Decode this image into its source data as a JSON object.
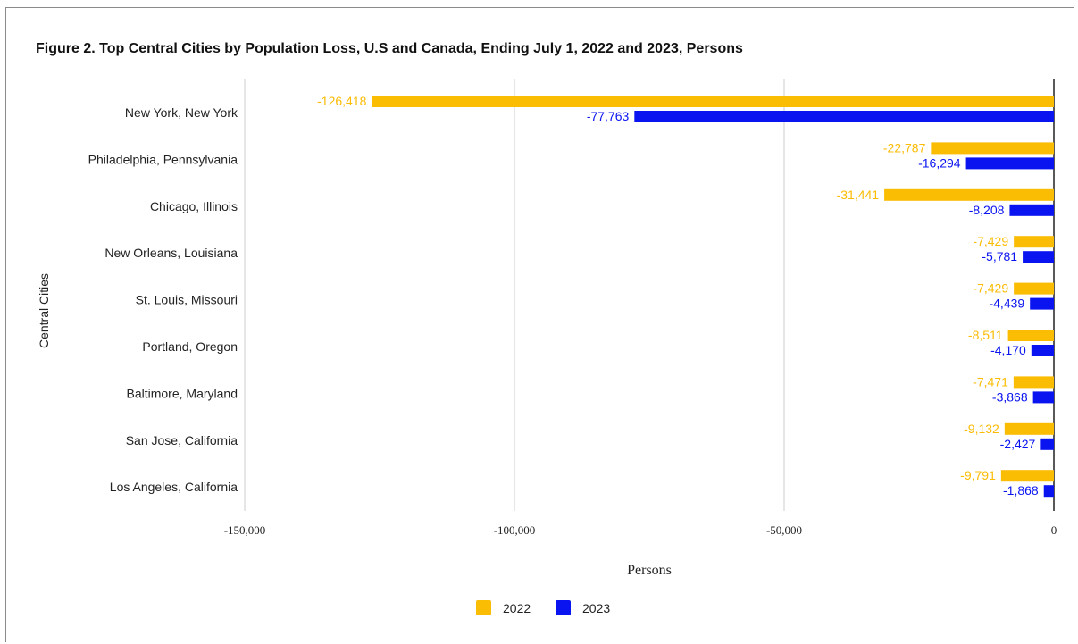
{
  "colors": {
    "series_2022": "#FBBC04",
    "series_2023": "#0A14F0",
    "grid": "#cccccc",
    "axis": "#222222"
  },
  "chart_data": {
    "type": "bar",
    "orientation": "horizontal",
    "title": "Figure 2. Top Central Cities by Population Loss, U.S and Canada, Ending July 1, 2022 and 2023, Persons",
    "xlabel": "Persons",
    "ylabel": "Central Cities",
    "xlim": [
      -150000,
      0
    ],
    "xticks": [
      -150000,
      -100000,
      -50000,
      0
    ],
    "xtick_labels": [
      "-150,000",
      "-100,000",
      "-50,000",
      "0"
    ],
    "grid": "vertical",
    "legend_position": "bottom",
    "categories": [
      "New York, New York",
      "Philadelphia, Pennsylvania",
      "Chicago, Illinois",
      "New Orleans, Louisiana",
      "St. Louis, Missouri",
      "Portland, Oregon",
      "Baltimore, Maryland",
      "San Jose, California",
      "Los Angeles, California"
    ],
    "series": [
      {
        "name": "2022",
        "values": [
          -126418,
          -22787,
          -31441,
          -7429,
          -7429,
          -8511,
          -7471,
          -9132,
          -9791
        ],
        "labels": [
          "-126,418",
          "-22,787",
          "-31,441",
          "-7,429",
          "-7,429",
          "-8,511",
          "-7,471",
          "-9,132",
          "-9,791"
        ]
      },
      {
        "name": "2023",
        "values": [
          -77763,
          -16294,
          -8208,
          -5781,
          -4439,
          -4170,
          -3868,
          -2427,
          -1868
        ],
        "labels": [
          "-77,763",
          "-16,294",
          "-8,208",
          "-5,781",
          "-4,439",
          "-4,170",
          "-3,868",
          "-2,427",
          "-1,868"
        ]
      }
    ]
  }
}
